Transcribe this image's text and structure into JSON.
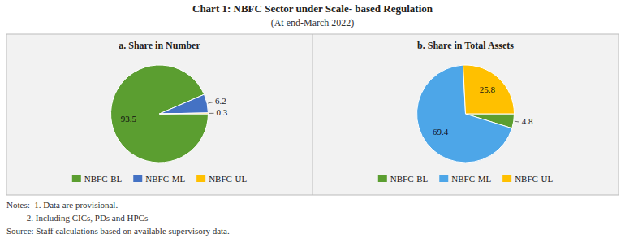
{
  "title": "Chart 1: NBFC Sector under Scale- based Regulation",
  "subtitle": "(At end-March 2022)",
  "annotations": [
    "Notes:  1. Data are provisional.",
    "         2. Including CICs, PDs and HPCs",
    "Source: Staff calculations based on available supervisory data."
  ],
  "chart_data": [
    {
      "type": "pie",
      "title": "a. Share in Number",
      "categories": [
        "NBFC-BL",
        "NBFC-ML",
        "NBFC-UL"
      ],
      "values": [
        93.5,
        6.2,
        0.3
      ],
      "colors": [
        "#5b9e30",
        "#4472c4",
        "#ffc000"
      ],
      "data_labels": true,
      "legend": "bottom"
    },
    {
      "type": "pie",
      "title": "b. Share in Total Assets",
      "categories": [
        "NBFC-BL",
        "NBFC-ML",
        "NBFC-UL"
      ],
      "values": [
        4.8,
        69.4,
        25.8
      ],
      "colors": [
        "#5b9e30",
        "#4da6e8",
        "#ffc000"
      ],
      "data_labels": true,
      "legend": "bottom"
    }
  ]
}
